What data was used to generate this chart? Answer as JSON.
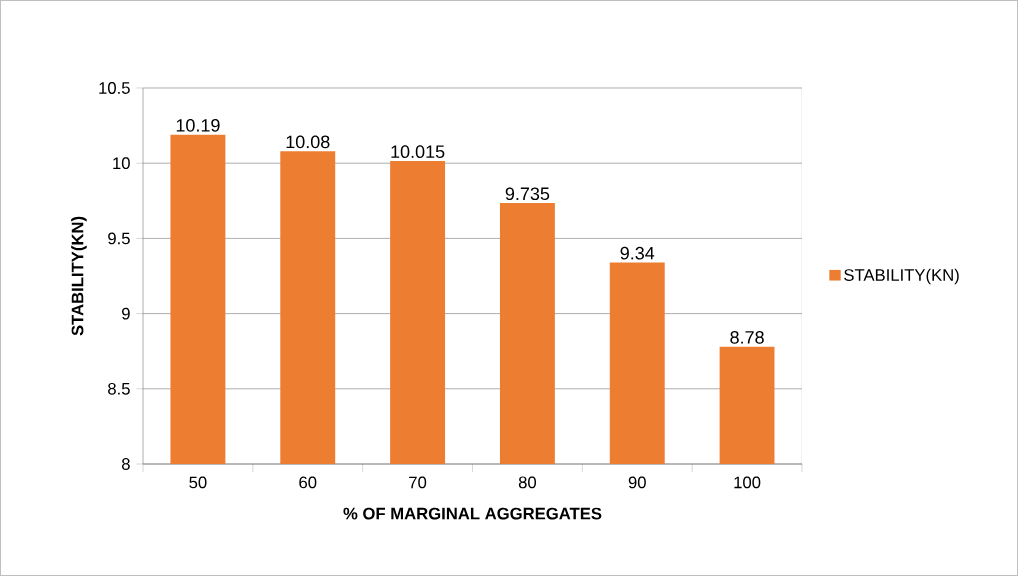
{
  "chart_data": {
    "type": "bar",
    "xlabel": "% OF MARGINAL AGGREGATES",
    "ylabel": "STABILITY(KN)",
    "categories": [
      "50",
      "60",
      "70",
      "80",
      "90",
      "100"
    ],
    "series": [
      {
        "name": "STABILITY(KN)",
        "color": "#ed7d31",
        "values": [
          10.19,
          10.08,
          10.015,
          9.735,
          9.34,
          8.78
        ]
      }
    ],
    "ylim": [
      8,
      10.5
    ],
    "yticks": [
      8,
      8.5,
      9,
      9.5,
      10,
      10.5
    ],
    "grid": "y",
    "legend": "right",
    "data_labels": true
  }
}
